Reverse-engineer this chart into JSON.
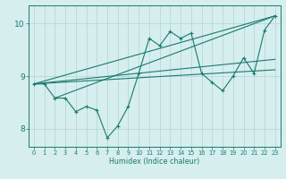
{
  "xlabel": "Humidex (Indice chaleur)",
  "bg_color": "#d6eeee",
  "grid_color": "#b0d8d8",
  "line_color": "#1a7a6e",
  "xlim": [
    -0.5,
    23.5
  ],
  "ylim": [
    7.65,
    10.35
  ],
  "yticks": [
    8,
    9,
    10
  ],
  "xticks": [
    0,
    1,
    2,
    3,
    4,
    5,
    6,
    7,
    8,
    9,
    10,
    11,
    12,
    13,
    14,
    15,
    16,
    17,
    18,
    19,
    20,
    21,
    22,
    23
  ],
  "main_x": [
    0,
    1,
    2,
    3,
    4,
    5,
    6,
    7,
    8,
    9,
    10,
    11,
    12,
    13,
    14,
    15,
    16,
    17,
    18,
    19,
    20,
    21,
    22,
    23
  ],
  "main_y": [
    8.85,
    8.85,
    8.58,
    8.58,
    8.32,
    8.42,
    8.35,
    7.82,
    8.05,
    8.42,
    9.05,
    9.72,
    9.58,
    9.85,
    9.72,
    9.82,
    9.05,
    8.88,
    8.72,
    9.0,
    9.35,
    9.05,
    9.88,
    10.15
  ],
  "line1_x": [
    0,
    23
  ],
  "line1_y": [
    8.85,
    10.15
  ],
  "line2_x": [
    0,
    23
  ],
  "line2_y": [
    8.85,
    9.12
  ],
  "line3_x": [
    2,
    23
  ],
  "line3_y": [
    8.58,
    10.15
  ],
  "line4_x": [
    0,
    23
  ],
  "line4_y": [
    8.85,
    9.32
  ]
}
